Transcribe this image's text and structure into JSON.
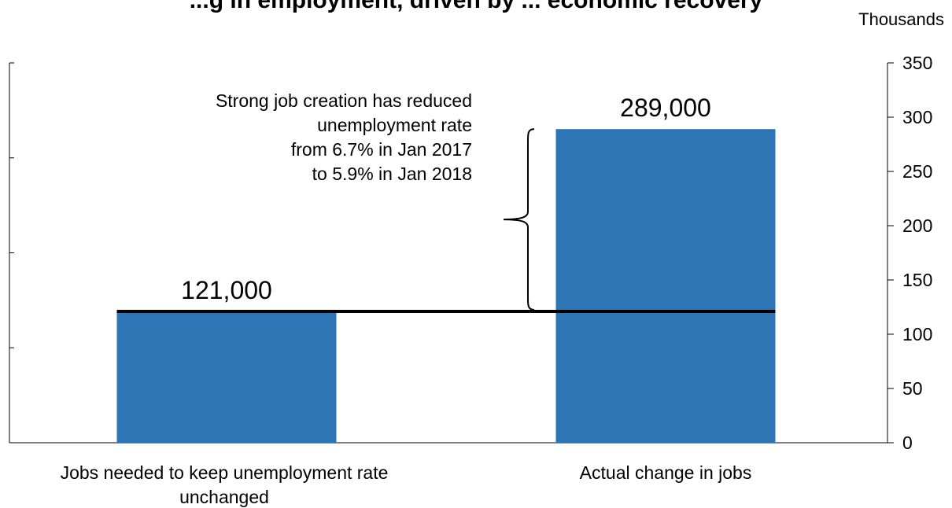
{
  "chart_data": {
    "type": "bar",
    "title": "...g in employment, driven by ... economic recovery",
    "unit_label": "Thousands",
    "categories": [
      "Jobs needed to keep unemployment rate unchanged",
      "Actual change in jobs"
    ],
    "values": [
      121,
      289
    ],
    "data_labels": [
      "121,000",
      "289,000"
    ],
    "ylim": [
      0,
      350
    ],
    "yticks": [
      0,
      50,
      100,
      150,
      200,
      250,
      300,
      350
    ],
    "y_axis_side": "right",
    "grid": false,
    "bar_color": "#2E75B6",
    "reference_line": 121,
    "annotation": [
      "Strong job creation has reduced",
      "unemployment rate",
      "from 6.7% in Jan 2017",
      "to 5.9% in Jan 2018"
    ]
  }
}
